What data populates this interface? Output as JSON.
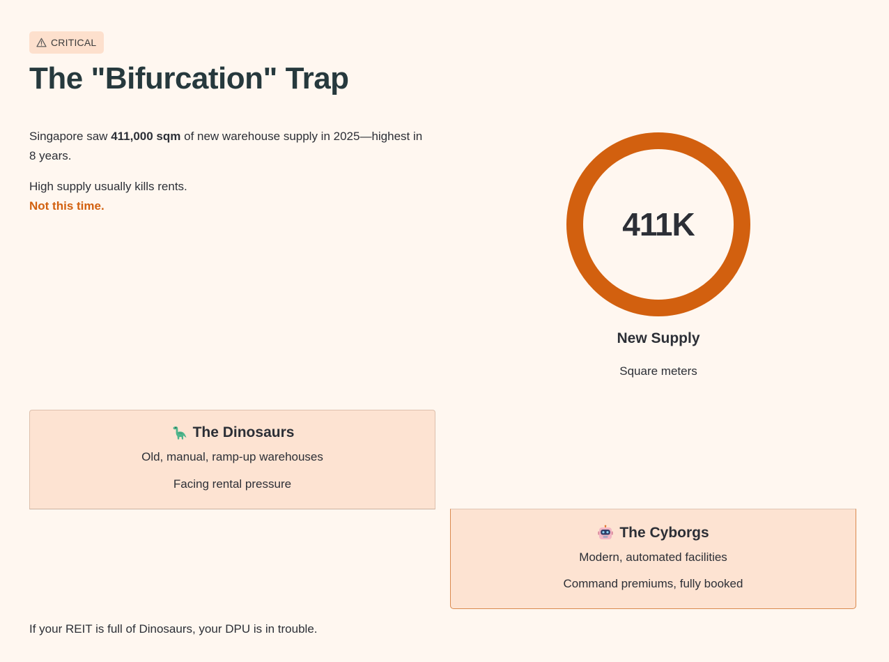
{
  "badge": {
    "label": "CRITICAL",
    "icon": "warning-icon"
  },
  "title": "The \"Bifurcation\" Trap",
  "intro": {
    "p1_prefix": "Singapore saw ",
    "p1_bold": "411,000 sqm",
    "p1_suffix": " of new warehouse supply in 2025—highest in 8 years.",
    "p2": "High supply usually kills rents.",
    "p2_accent": "Not this time."
  },
  "stat": {
    "value": "411K",
    "label": "New Supply",
    "sublabel": "Square meters",
    "ring_color": "#d2600f"
  },
  "cards": {
    "dinosaurs": {
      "icon": "dinosaur-icon",
      "title": "The Dinosaurs",
      "line1": "Old, manual, ramp-up warehouses",
      "line2": "Facing rental pressure"
    },
    "cyborgs": {
      "icon": "robot-icon",
      "title": "The Cyborgs",
      "line1": "Modern, automated facilities",
      "line2": "Command premiums, fully booked"
    }
  },
  "footer": "If your REIT is full of Dinosaurs, your DPU is in trouble.",
  "colors": {
    "background": "#fff7f0",
    "accent": "#d2600f",
    "card_bg": "#fde3d2",
    "title": "#26393d"
  }
}
